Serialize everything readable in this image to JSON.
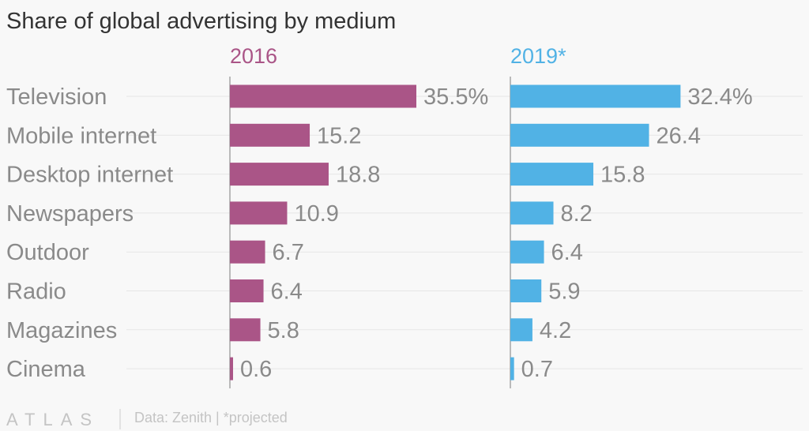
{
  "chart_data": {
    "type": "bar",
    "orientation": "horizontal",
    "title": "Share of global advertising by medium",
    "categories": [
      "Television",
      "Mobile internet",
      "Desktop internet",
      "Newspapers",
      "Outdoor",
      "Radio",
      "Magazines",
      "Cinema"
    ],
    "series": [
      {
        "name": "2016",
        "color": "#aa5587",
        "values": [
          35.5,
          15.2,
          18.8,
          10.9,
          6.7,
          6.4,
          5.8,
          0.6
        ],
        "value_labels": [
          "35.5%",
          "15.2",
          "18.8",
          "10.9",
          "6.7",
          "6.4",
          "5.8",
          "0.6"
        ]
      },
      {
        "name": "2019*",
        "color": "#51b2e5",
        "values": [
          32.4,
          26.4,
          15.8,
          8.2,
          6.4,
          5.9,
          4.2,
          0.7
        ],
        "value_labels": [
          "32.4%",
          "26.4",
          "15.8",
          "8.2",
          "6.4",
          "5.9",
          "4.2",
          "0.7"
        ]
      }
    ],
    "xlim": [
      0,
      35.5
    ],
    "grid": true,
    "legend": "none"
  },
  "footer": {
    "brand": "ATLAS",
    "source": "Data: Zenith | *projected"
  }
}
